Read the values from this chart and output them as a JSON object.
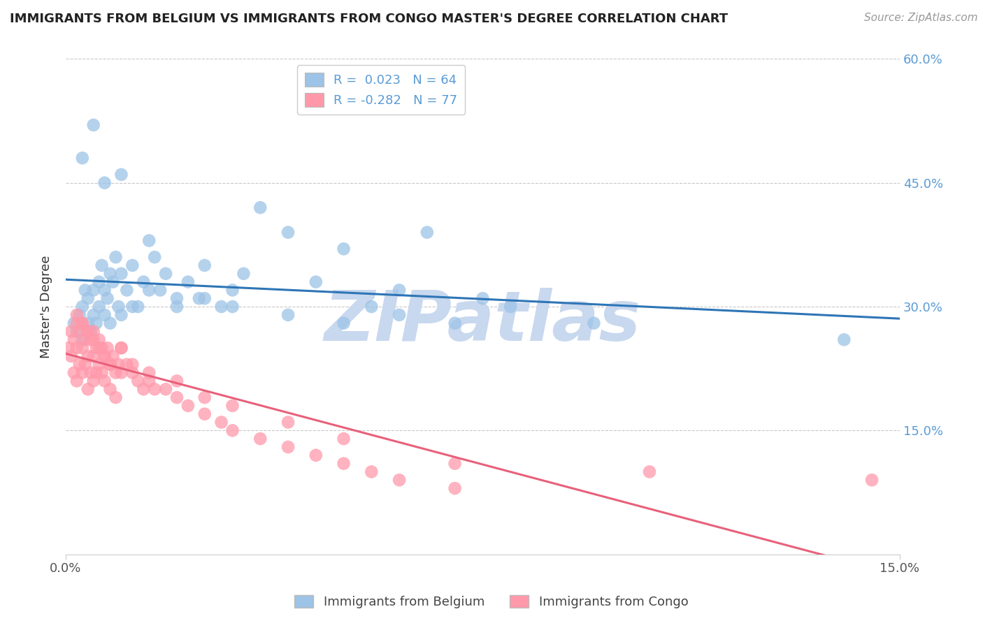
{
  "title": "IMMIGRANTS FROM BELGIUM VS IMMIGRANTS FROM CONGO MASTER'S DEGREE CORRELATION CHART",
  "source": "Source: ZipAtlas.com",
  "ylabel": "Master's Degree",
  "xlim": [
    0.0,
    15.0
  ],
  "ylim": [
    0.0,
    60.0
  ],
  "color_belgium": "#9DC3E6",
  "color_congo": "#FF99AA",
  "trend_color_belgium": "#2E75B6",
  "trend_color_congo": "#E8607A",
  "watermark_text": "ZIPatlas",
  "watermark_color": "#C8D8EE",
  "belgium_x": [
    0.15,
    0.2,
    0.25,
    0.3,
    0.3,
    0.35,
    0.4,
    0.4,
    0.45,
    0.5,
    0.5,
    0.55,
    0.6,
    0.6,
    0.65,
    0.7,
    0.7,
    0.75,
    0.8,
    0.8,
    0.85,
    0.9,
    0.95,
    1.0,
    1.0,
    1.1,
    1.2,
    1.3,
    1.4,
    1.5,
    1.6,
    1.7,
    1.8,
    2.0,
    2.2,
    2.4,
    2.5,
    2.8,
    3.0,
    3.2,
    3.5,
    4.0,
    4.5,
    5.0,
    5.5,
    6.0,
    6.5,
    7.0,
    7.5,
    8.0,
    0.3,
    0.5,
    0.7,
    1.0,
    1.2,
    1.5,
    2.0,
    2.5,
    3.0,
    4.0,
    5.0,
    6.0,
    9.5,
    14.0
  ],
  "belgium_y": [
    28,
    27,
    29,
    30,
    26,
    32,
    28,
    31,
    27,
    29,
    32,
    28,
    33,
    30,
    35,
    29,
    32,
    31,
    34,
    28,
    33,
    36,
    30,
    34,
    29,
    32,
    35,
    30,
    33,
    38,
    36,
    32,
    34,
    30,
    33,
    31,
    35,
    30,
    32,
    34,
    42,
    39,
    33,
    37,
    30,
    32,
    39,
    28,
    31,
    30,
    48,
    52,
    45,
    46,
    30,
    32,
    31,
    31,
    30,
    29,
    28,
    29,
    28,
    26
  ],
  "congo_x": [
    0.05,
    0.1,
    0.1,
    0.15,
    0.15,
    0.2,
    0.2,
    0.2,
    0.25,
    0.25,
    0.3,
    0.3,
    0.3,
    0.35,
    0.35,
    0.4,
    0.4,
    0.4,
    0.45,
    0.45,
    0.5,
    0.5,
    0.5,
    0.55,
    0.55,
    0.6,
    0.6,
    0.65,
    0.65,
    0.7,
    0.7,
    0.75,
    0.8,
    0.8,
    0.85,
    0.9,
    0.9,
    0.95,
    1.0,
    1.0,
    1.1,
    1.2,
    1.3,
    1.4,
    1.5,
    1.6,
    1.8,
    2.0,
    2.2,
    2.5,
    2.8,
    3.0,
    3.5,
    4.0,
    4.5,
    5.0,
    5.5,
    6.0,
    7.0,
    0.2,
    0.3,
    0.4,
    0.5,
    0.6,
    0.7,
    0.8,
    1.0,
    1.2,
    1.5,
    2.0,
    2.5,
    3.0,
    4.0,
    5.0,
    7.0,
    10.5,
    14.5
  ],
  "congo_y": [
    25,
    27,
    24,
    26,
    22,
    28,
    25,
    21,
    27,
    23,
    28,
    25,
    22,
    26,
    23,
    27,
    24,
    20,
    26,
    22,
    27,
    24,
    21,
    25,
    22,
    26,
    23,
    25,
    22,
    24,
    21,
    25,
    23,
    20,
    24,
    22,
    19,
    23,
    25,
    22,
    23,
    22,
    21,
    20,
    21,
    20,
    20,
    19,
    18,
    17,
    16,
    15,
    14,
    13,
    12,
    11,
    10,
    9,
    8,
    29,
    28,
    27,
    26,
    25,
    24,
    23,
    25,
    23,
    22,
    21,
    19,
    18,
    16,
    14,
    11,
    10,
    9
  ]
}
